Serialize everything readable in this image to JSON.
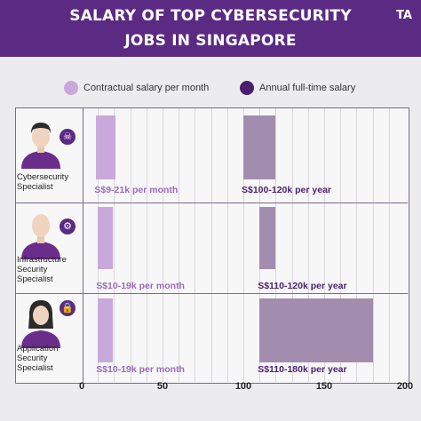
{
  "header": {
    "line1": "SALARY OF TOP CYBERSECURITY",
    "line2": "JOBS IN SINGAPORE",
    "logo": "TA"
  },
  "colors": {
    "header_bg": "#5b2a83",
    "contractual": "#c9a8dc",
    "annual": "#a28dae",
    "annual_tall": "#a28dae",
    "dark_label": "#4a1f70",
    "light_label": "#9b6bbd"
  },
  "legend": {
    "contractual": "Contractual salary per month",
    "annual": "Annual full-time salary"
  },
  "roles": [
    {
      "name": "Cybersecurity Specialist",
      "icon": "skull-icon"
    },
    {
      "name": "Infrastructure Security Specialist",
      "icon": "gear-icon"
    },
    {
      "name": "Application Security Specialist",
      "icon": "lock-icon"
    }
  ],
  "chart_data": {
    "type": "bar",
    "orientation": "horizontal",
    "categories": [
      "Cybersecurity Specialist",
      "Infrastructure Security Specialist",
      "Application Security Specialist"
    ],
    "series": [
      {
        "name": "Contractual salary per month",
        "ranges": [
          [
            9,
            21
          ],
          [
            10,
            19
          ],
          [
            10,
            19
          ]
        ],
        "labels": [
          "S$9-21k per month",
          "S$10-19k per month",
          "S$10-19k per month"
        ]
      },
      {
        "name": "Annual full-time salary",
        "ranges": [
          [
            100,
            120
          ],
          [
            110,
            120
          ],
          [
            110,
            180
          ]
        ],
        "labels": [
          "S$100-120k per year",
          "S$110-120k per year",
          "S$110-180k per year"
        ]
      }
    ],
    "xlim": [
      0,
      200
    ],
    "xticks": [
      "0",
      "50",
      "100",
      "150",
      "200"
    ],
    "grid": true,
    "legend": "top"
  }
}
